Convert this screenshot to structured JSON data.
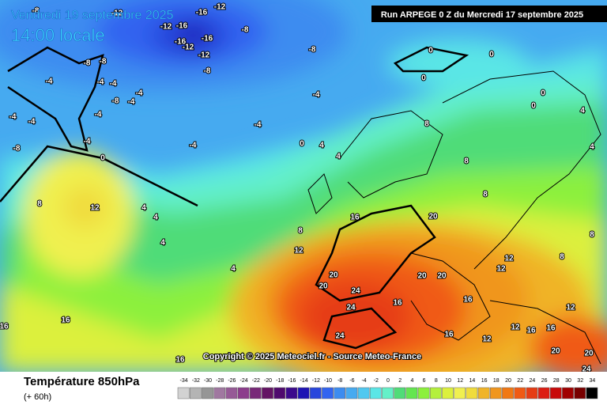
{
  "header": {
    "valid": "Vendredi 19 septembre 2025",
    "time": "14:00 locale",
    "run": "Run ARPEGE 0 Z du Mercredi 17 septembre 2025"
  },
  "copyright": "Copyright © 2025 Meteociel.fr - Source Meteo-France",
  "footer": {
    "title": "Température 850hPa",
    "lead": "(+ 60h)"
  },
  "legend": {
    "values": [
      -34,
      -32,
      -30,
      -28,
      -26,
      -24,
      -22,
      -20,
      -18,
      -16,
      -14,
      -12,
      -10,
      -8,
      -6,
      -4,
      -2,
      0,
      2,
      4,
      6,
      8,
      10,
      12,
      14,
      16,
      18,
      20,
      22,
      24,
      26,
      28,
      30,
      32,
      34
    ],
    "colors": [
      "#d2d2d2",
      "#b4b4b4",
      "#969696",
      "#a078a0",
      "#965a96",
      "#8c3c8c",
      "#782878",
      "#641464",
      "#500a6e",
      "#3c0a8c",
      "#1e14b4",
      "#2846dc",
      "#3264f0",
      "#3c8cf0",
      "#46aaf0",
      "#50c8f0",
      "#5ae6e6",
      "#64f0c8",
      "#50dc78",
      "#64e650",
      "#8cf03c",
      "#b4f03c",
      "#dcf03c",
      "#f0f050",
      "#f0dc3c",
      "#f0b428",
      "#f0961e",
      "#f07814",
      "#f05a14",
      "#e63c14",
      "#dc1e14",
      "#c80a0a",
      "#a00000",
      "#780000",
      "#000000"
    ]
  },
  "contour_labels": [
    -8,
    -12,
    -16,
    -12,
    -12,
    -16,
    -8,
    -16,
    -16,
    -12,
    -12,
    -8,
    -8,
    -8,
    -8,
    0,
    0,
    0,
    -4,
    -4,
    -4,
    -4,
    -4,
    -8,
    -4,
    -4,
    -4,
    -4,
    -4,
    -4,
    0,
    4,
    -8,
    -4,
    0,
    4,
    8,
    8,
    8,
    4,
    4,
    0,
    0,
    12,
    8,
    4,
    4,
    16,
    20,
    8,
    12,
    8,
    4,
    4,
    12,
    12,
    20,
    20,
    20,
    20,
    24,
    24,
    16,
    16,
    12,
    16,
    16,
    24,
    16,
    12,
    16,
    16,
    20,
    20,
    24,
    16,
    8,
    12
  ]
}
